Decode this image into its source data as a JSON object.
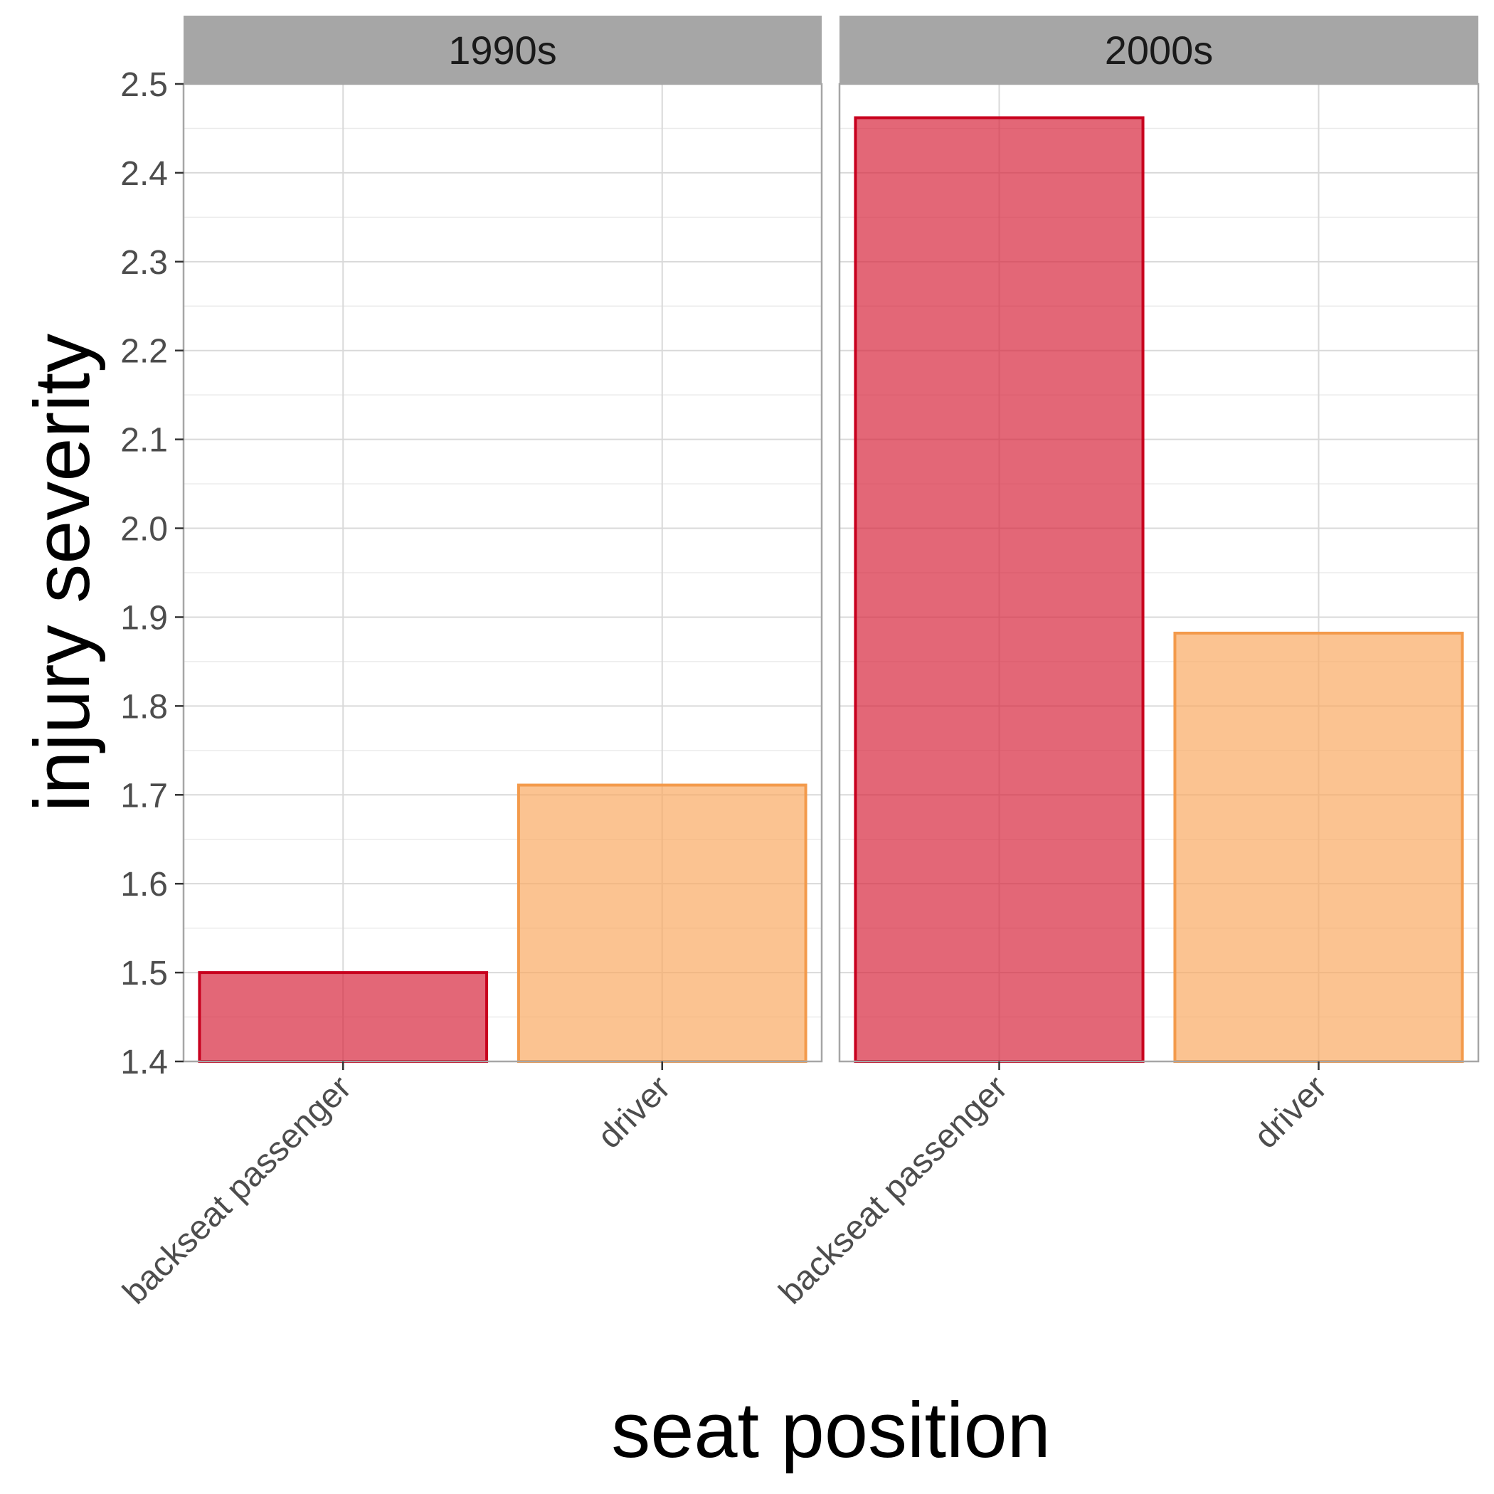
{
  "chart_data": {
    "type": "bar",
    "xlabel": "seat position",
    "ylabel": "injury severity",
    "ylim": [
      1.4,
      2.5
    ],
    "yticks": [
      "1.4",
      "1.5",
      "1.6",
      "1.7",
      "1.8",
      "1.9",
      "2.0",
      "2.1",
      "2.2",
      "2.3",
      "2.4",
      "2.5"
    ],
    "grid": true,
    "legend": "none",
    "categories": [
      "backseat passenger",
      "driver"
    ],
    "colors": {
      "backseat passenger": {
        "fill": "#d7263d",
        "stroke": "#c8001e"
      },
      "driver": {
        "fill": "#f9a963",
        "stroke": "#f39a4b"
      },
      "strip_background": "#a6a6a6",
      "panel_border": "#a6a6a6"
    },
    "panels": [
      {
        "label": "1990s",
        "values": [
          1.5,
          1.711
        ]
      },
      {
        "label": "2000s",
        "values": [
          2.462,
          1.882
        ]
      }
    ]
  }
}
